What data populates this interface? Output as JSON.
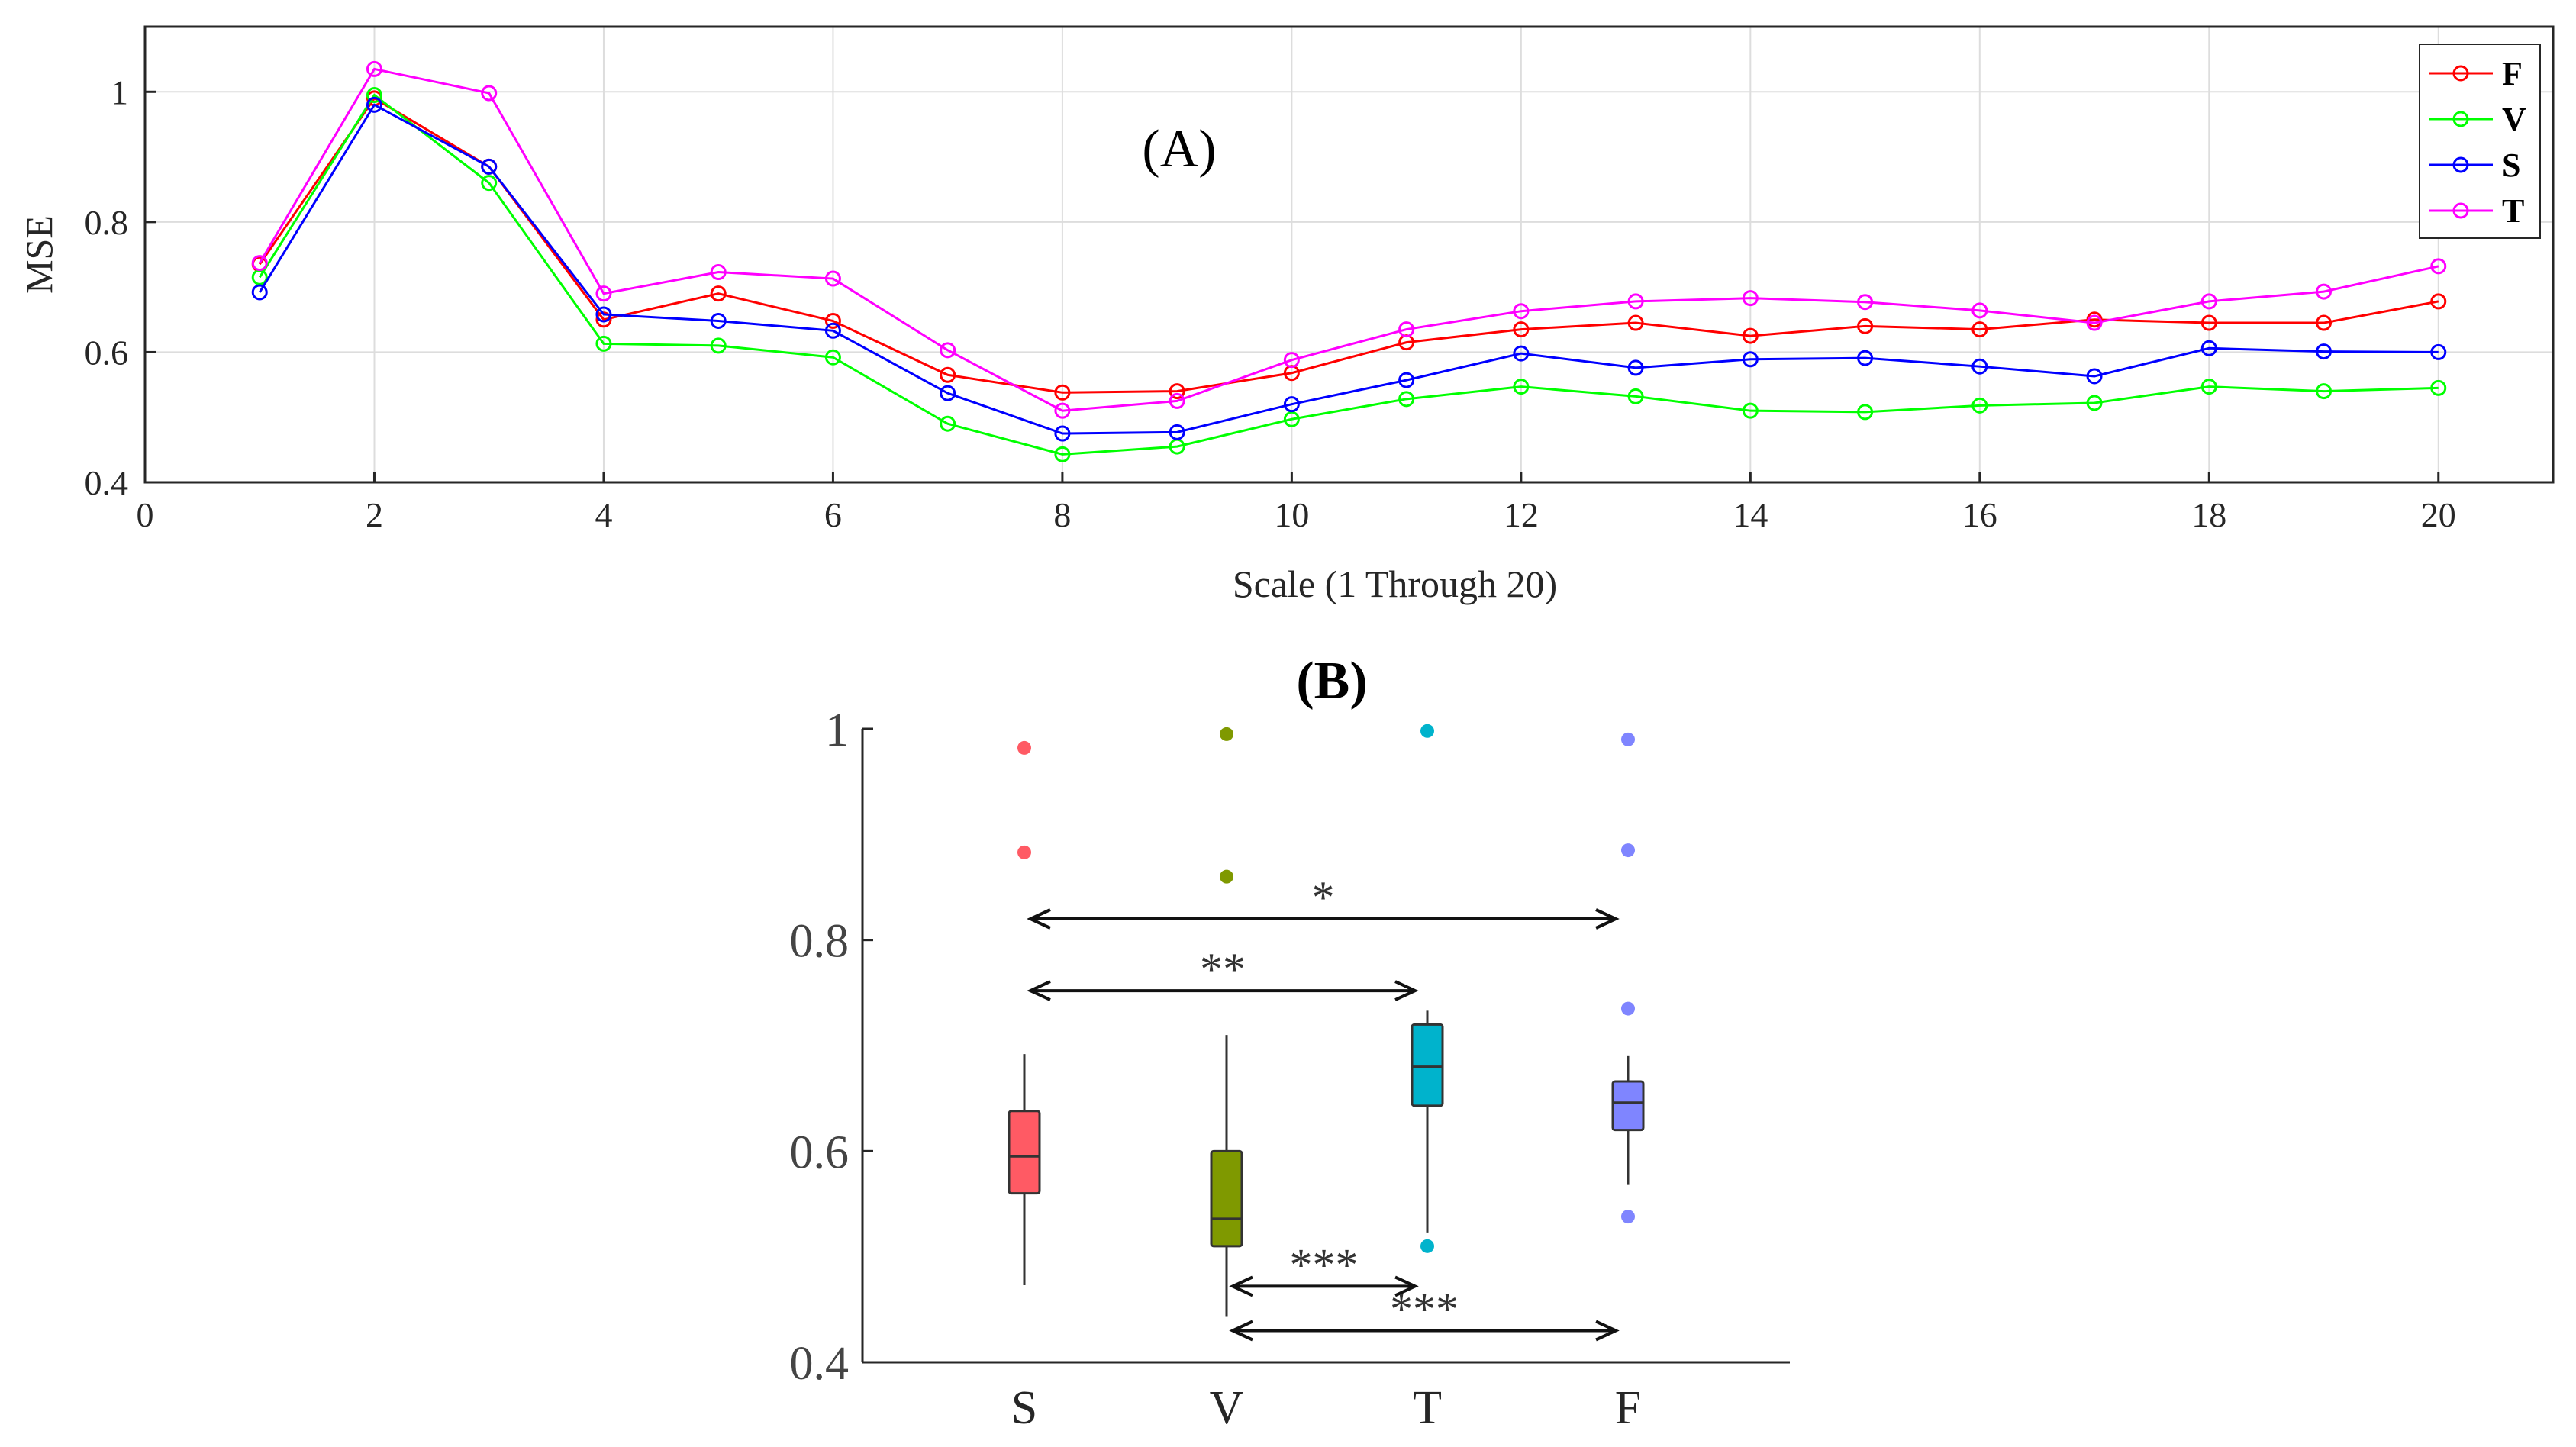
{
  "chart_data": [
    {
      "type": "line",
      "panel_label": "(A)",
      "xlabel": "Scale (1 Through 20)",
      "ylabel": "MSE",
      "xlim": [
        0,
        21
      ],
      "ylim": [
        0.4,
        1.1
      ],
      "xticks": [
        0,
        2,
        4,
        6,
        8,
        10,
        12,
        14,
        16,
        18,
        20
      ],
      "yticks": [
        0.4,
        0.6,
        0.8,
        1
      ],
      "grid": true,
      "legend_position": "top-right",
      "x": [
        1,
        2,
        3,
        4,
        5,
        6,
        7,
        8,
        9,
        10,
        11,
        12,
        13,
        14,
        15,
        16,
        17,
        18,
        19,
        20
      ],
      "series": [
        {
          "name": "F",
          "color": "#ff0000",
          "values": [
            0.735,
            0.99,
            0.885,
            0.65,
            0.69,
            0.648,
            0.565,
            0.538,
            0.54,
            0.568,
            0.615,
            0.635,
            0.645,
            0.625,
            0.64,
            0.635,
            0.65,
            0.645,
            0.645,
            0.678
          ]
        },
        {
          "name": "V",
          "color": "#00ff00",
          "values": [
            0.715,
            0.995,
            0.86,
            0.613,
            0.61,
            0.592,
            0.49,
            0.443,
            0.455,
            0.497,
            0.528,
            0.547,
            0.532,
            0.51,
            0.508,
            0.518,
            0.522,
            0.547,
            0.54,
            0.545
          ]
        },
        {
          "name": "S",
          "color": "#0000ff",
          "values": [
            0.692,
            0.98,
            0.885,
            0.658,
            0.648,
            0.633,
            0.537,
            0.475,
            0.477,
            0.52,
            0.557,
            0.598,
            0.576,
            0.589,
            0.591,
            0.578,
            0.563,
            0.606,
            0.601,
            0.6
          ]
        },
        {
          "name": "T",
          "color": "#ff00ff",
          "values": [
            0.737,
            1.035,
            0.998,
            0.69,
            0.723,
            0.713,
            0.603,
            0.51,
            0.525,
            0.588,
            0.635,
            0.663,
            0.678,
            0.683,
            0.677,
            0.664,
            0.645,
            0.678,
            0.693,
            0.732
          ]
        }
      ]
    },
    {
      "type": "box",
      "panel_label": "(B)",
      "ylim": [
        0.4,
        1.0
      ],
      "yticks": [
        0.4,
        0.6,
        0.8,
        1
      ],
      "categories": [
        "S",
        "V",
        "T",
        "F"
      ],
      "boxes": [
        {
          "name": "S",
          "color": "#ff5a64",
          "q1": 0.56,
          "median": 0.595,
          "q3": 0.638,
          "whisker_low": 0.473,
          "whisker_high": 0.692,
          "outliers": [
            0.883,
            0.982
          ]
        },
        {
          "name": "V",
          "color": "#7f9900",
          "q1": 0.51,
          "median": 0.536,
          "q3": 0.6,
          "whisker_low": 0.443,
          "whisker_high": 0.71,
          "outliers": [
            0.86,
            0.995
          ]
        },
        {
          "name": "T",
          "color": "#00b3cc",
          "q1": 0.643,
          "median": 0.68,
          "q3": 0.72,
          "whisker_low": 0.523,
          "whisker_high": 0.733,
          "outliers": [
            0.51,
            0.998
          ]
        },
        {
          "name": "F",
          "color": "#7f85ff",
          "q1": 0.62,
          "median": 0.646,
          "q3": 0.666,
          "whisker_low": 0.568,
          "whisker_high": 0.69,
          "outliers": [
            0.538,
            0.735,
            0.885,
            0.99
          ]
        }
      ],
      "comparisons": [
        {
          "from": "S",
          "to": "F",
          "y": 0.82,
          "label": "*"
        },
        {
          "from": "S",
          "to": "T",
          "y": 0.752,
          "label": "**"
        },
        {
          "from": "V",
          "to": "T",
          "y": 0.472,
          "label": "***"
        },
        {
          "from": "V",
          "to": "F",
          "y": 0.43,
          "label": "***"
        }
      ]
    }
  ]
}
